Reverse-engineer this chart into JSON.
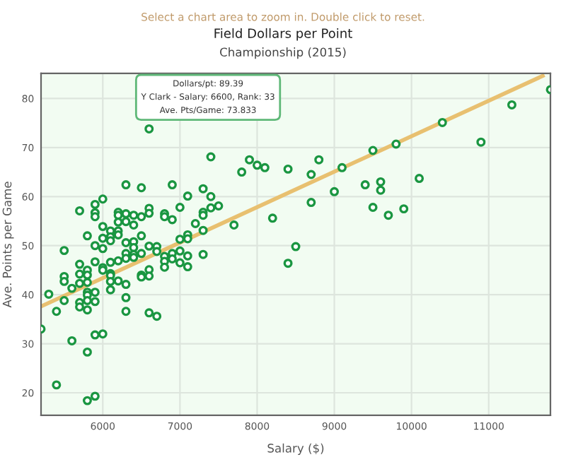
{
  "chart_data": {
    "type": "scatter",
    "title": "Field Dollars per Point",
    "subtitle": "Championship (2015)",
    "xlabel": "Salary ($)",
    "ylabel": "Ave. Points per Game",
    "annotations": [
      "Select a chart area to zoom in. Double click to reset.",
      {
        "text": "Dollars/pt: 89.39\nY Clark - Salary: 6600, Rank: 33\nAve. Pts/Game: 73.833",
        "x": 6600,
        "y": 73.833
      }
    ],
    "xlim": [
      5200,
      11800
    ],
    "ylim": [
      15.4,
      85.1
    ],
    "xticks": [
      6000,
      7000,
      8000,
      9000,
      10000,
      11000
    ],
    "yticks": [
      20,
      30,
      40,
      50,
      60,
      70,
      80
    ],
    "grid": true,
    "series": [
      {
        "marker": "circle",
        "color": "#1a9641",
        "x": [
          5200,
          5300,
          5400,
          5400,
          5500,
          5500,
          5500,
          5500,
          5600,
          5600,
          5700,
          5700,
          5700,
          5700,
          5700,
          5700,
          5800,
          5800,
          5800,
          5800,
          5800,
          5800,
          5800,
          5800,
          5800,
          5800,
          5900,
          5900,
          5900,
          5900,
          5900,
          5900,
          5900,
          5900,
          5900,
          6000,
          6000,
          6000,
          6000,
          6000,
          6000,
          6000,
          6100,
          6100,
          6100,
          6100,
          6100,
          6100,
          6100,
          6100,
          6200,
          6200,
          6200,
          6200,
          6200,
          6200,
          6200,
          6300,
          6300,
          6300,
          6300,
          6300,
          6300,
          6300,
          6300,
          6300,
          6400,
          6400,
          6400,
          6400,
          6400,
          6400,
          6500,
          6500,
          6500,
          6500,
          6500,
          6500,
          6600,
          6600,
          6600,
          6600,
          6600,
          6600,
          6600,
          6700,
          6700,
          6700,
          6800,
          6800,
          6800,
          6800,
          6800,
          6900,
          6900,
          6900,
          6900,
          7000,
          7000,
          7000,
          7000,
          7100,
          7100,
          7100,
          7100,
          7100,
          7200,
          7300,
          7300,
          7300,
          7300,
          7300,
          7400,
          7400,
          7400,
          7500,
          7700,
          7800,
          7900,
          8000,
          8100,
          8200,
          8400,
          8400,
          8500,
          8700,
          8700,
          8800,
          9000,
          9100,
          9400,
          9500,
          9500,
          9600,
          9600,
          9700,
          9800,
          9900,
          10100,
          10400,
          10900,
          11300,
          11800
        ],
        "values": [
          33.0,
          40.1,
          36.6,
          21.6,
          49.0,
          43.7,
          42.7,
          38.8,
          41.3,
          30.6,
          57.1,
          46.2,
          44.2,
          42.3,
          38.4,
          37.5,
          52.0,
          45.0,
          44.0,
          42.5,
          40.5,
          39.9,
          38.8,
          36.9,
          28.3,
          18.4,
          58.4,
          56.7,
          55.9,
          50.0,
          46.7,
          40.5,
          38.6,
          31.8,
          19.3,
          59.5,
          53.9,
          51.5,
          49.4,
          45.5,
          45.0,
          32.0,
          53.0,
          51.8,
          51.0,
          46.6,
          44.3,
          43.9,
          42.7,
          41.0,
          56.8,
          56.2,
          54.8,
          53.0,
          52.2,
          46.9,
          42.8,
          62.4,
          56.5,
          54.9,
          50.6,
          48.4,
          47.4,
          42.1,
          39.4,
          36.6,
          56.2,
          54.2,
          50.8,
          49.6,
          48.2,
          47.6,
          61.8,
          55.9,
          52.0,
          48.4,
          44.0,
          43.6,
          73.8,
          57.6,
          56.6,
          49.9,
          45.1,
          43.8,
          36.3,
          49.8,
          48.8,
          35.6,
          56.5,
          55.9,
          47.8,
          46.8,
          45.6,
          62.4,
          55.3,
          48.4,
          47.3,
          57.8,
          51.3,
          48.9,
          46.5,
          60.1,
          52.2,
          51.4,
          47.9,
          45.7,
          54.5,
          61.6,
          56.8,
          56.2,
          53.1,
          48.2,
          68.1,
          60.0,
          57.7,
          58.1,
          54.2,
          65.0,
          67.5,
          66.4,
          65.9,
          55.6,
          65.6,
          46.4,
          49.8,
          64.5,
          58.8,
          67.5,
          61.0,
          65.9,
          62.4,
          69.4,
          57.8,
          63.0,
          61.3,
          56.2,
          70.7,
          57.5,
          63.7,
          75.1,
          71.1,
          78.7,
          81.8
        ]
      },
      {
        "type": "line",
        "color": "#e8c070",
        "x": [
          5200,
          11700
        ],
        "values": [
          37.6,
          84.6
        ]
      }
    ]
  }
}
